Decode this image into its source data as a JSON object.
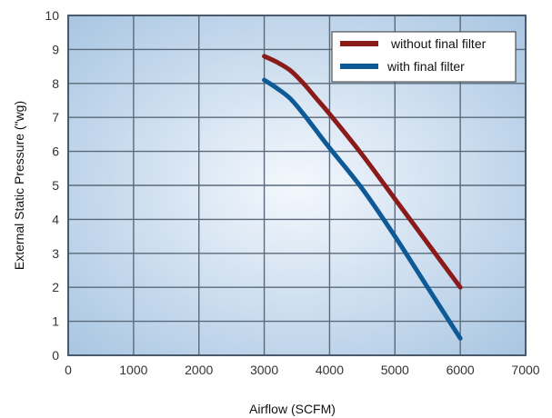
{
  "chart_data": {
    "type": "line",
    "title": "",
    "xlabel": "Airflow (SCFM)",
    "ylabel": "External Static Pressure (\"wg)",
    "xlim": [
      0,
      7000
    ],
    "ylim": [
      0,
      10
    ],
    "x_ticks": [
      "0",
      "1000",
      "2000",
      "3000",
      "4000",
      "5000",
      "6000",
      "7000"
    ],
    "y_ticks": [
      "0",
      "1",
      "2",
      "3",
      "4",
      "5",
      "6",
      "7",
      "8",
      "9",
      "10"
    ],
    "grid": true,
    "legend_position": "top-right",
    "series": [
      {
        "name": "without final filter",
        "color": "#8b1a1a",
        "x": [
          3000,
          3200,
          3400,
          3600,
          3800,
          4000,
          4500,
          5000,
          5500,
          6000
        ],
        "y": [
          8.8,
          8.62,
          8.38,
          8.0,
          7.55,
          7.1,
          5.9,
          4.6,
          3.3,
          2.0
        ]
      },
      {
        "name": "with final filter",
        "color": "#0e5a96",
        "x": [
          3000,
          3200,
          3400,
          3600,
          3800,
          4000,
          4500,
          5000,
          5500,
          6000
        ],
        "y": [
          8.1,
          7.85,
          7.55,
          7.1,
          6.6,
          6.1,
          4.9,
          3.5,
          2.0,
          0.5
        ]
      }
    ]
  },
  "colors": {
    "plot_center": "#f4f8fd",
    "plot_edge": "#a9c6e2",
    "grid": "#5a6a7a",
    "frame": "#4a5a6a"
  }
}
